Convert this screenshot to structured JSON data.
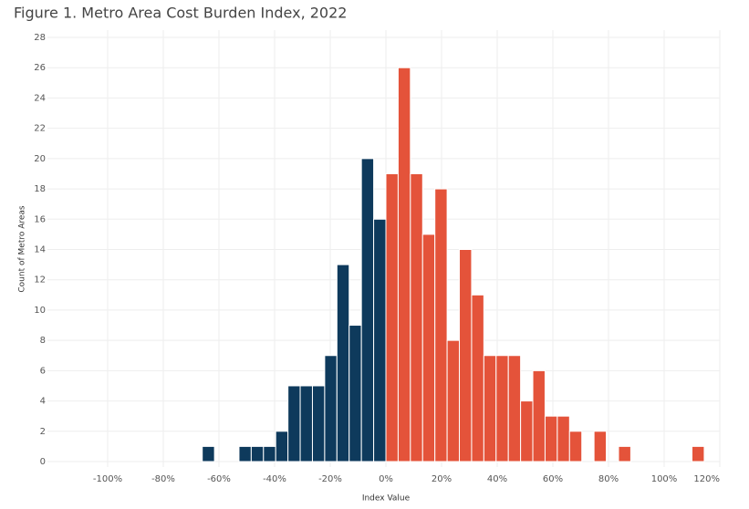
{
  "chart_data": {
    "type": "histogram",
    "title": "Figure 1. Metro Area Cost Burden Index, 2022",
    "x_label": "Index Value",
    "y_label": "Count of Metro Areas",
    "bins": [
      -66,
      -61.6,
      -57.2,
      -52.8,
      -48.4,
      -44,
      -39.6,
      -35.2,
      -30.8,
      -26.4,
      -22,
      -17.6,
      -13.2,
      -8.8,
      -4.4,
      0,
      4.4,
      8.8,
      13.2,
      17.6,
      22,
      26.4,
      30.8,
      35.2,
      39.6,
      44,
      48.4,
      52.8,
      57.2,
      61.6,
      66,
      70.4,
      74.8,
      79.2,
      83.6,
      88,
      92.4,
      96.8,
      101.2,
      105.6,
      110,
      114.4
    ],
    "values": [
      1,
      0,
      0,
      1,
      1,
      1,
      2,
      5,
      5,
      5,
      7,
      13,
      9,
      20,
      16,
      19,
      26,
      19,
      15,
      18,
      8,
      14,
      11,
      7,
      7,
      7,
      4,
      6,
      3,
      3,
      2,
      0,
      2,
      0,
      1,
      0,
      0,
      0,
      0,
      0,
      1
    ],
    "color": "#e4533a",
    "color_below_zero": "#0e3a5c",
    "xlim": [
      -120,
      120
    ],
    "xticks": [
      {
        "value": -100,
        "label": "-100%"
      },
      {
        "value": -80,
        "label": "-80%"
      },
      {
        "value": -60,
        "label": "-60%"
      },
      {
        "value": -40,
        "label": "-40%"
      },
      {
        "value": -20,
        "label": "-20%"
      },
      {
        "value": 0,
        "label": "0%"
      },
      {
        "value": 20,
        "label": "20%"
      },
      {
        "value": 40,
        "label": "40%"
      },
      {
        "value": 60,
        "label": "60%"
      },
      {
        "value": 80,
        "label": "80%"
      },
      {
        "value": 100,
        "label": "100%"
      },
      {
        "value": 120,
        "label": "120%"
      }
    ],
    "ylim": [
      0,
      28
    ],
    "yticks": [
      0,
      2,
      4,
      6,
      8,
      10,
      12,
      14,
      16,
      18,
      20,
      22,
      24,
      26,
      28
    ],
    "grid": true
  }
}
